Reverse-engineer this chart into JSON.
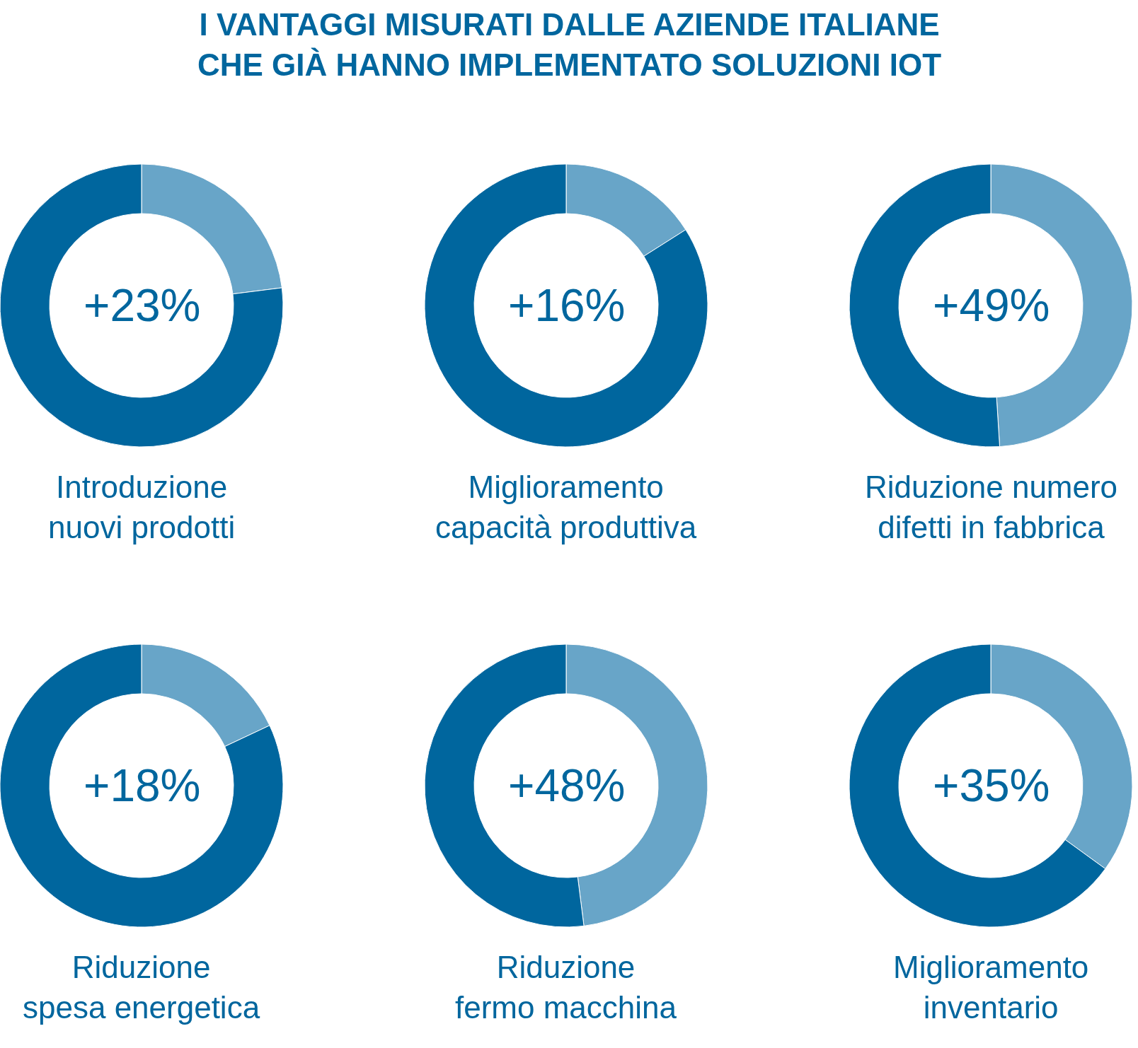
{
  "chart_data": [
    {
      "type": "other",
      "title": "I VANTAGGI MISURATI DALLE AZIENDE ITALIANE\nCHE GIÀ HANNO IMPLEMENTATO SOLUZIONI IOT"
    },
    {
      "type": "donut",
      "categories": [
        null,
        null
      ],
      "values": [
        23,
        77
      ],
      "colors": [
        "#68a5c8",
        "#00669e"
      ],
      "annotations": [
        "+23%"
      ],
      "xlabel": "Introduzione\nnuovi prodotti"
    },
    {
      "type": "donut",
      "categories": [
        null,
        null
      ],
      "values": [
        16,
        84
      ],
      "colors": [
        "#68a5c8",
        "#00669e"
      ],
      "annotations": [
        "+16%"
      ],
      "xlabel": "Miglioramento\ncapacità produttiva"
    },
    {
      "type": "donut",
      "categories": [
        null,
        null
      ],
      "values": [
        49,
        51
      ],
      "colors": [
        "#68a5c8",
        "#00669e"
      ],
      "annotations": [
        "+49%"
      ],
      "xlabel": "Riduzione numero\ndifetti in fabbrica"
    },
    {
      "type": "donut",
      "categories": [
        null,
        null
      ],
      "values": [
        18,
        82
      ],
      "colors": [
        "#68a5c8",
        "#00669e"
      ],
      "annotations": [
        "+18%"
      ],
      "xlabel": "Riduzione\nspesa energetica"
    },
    {
      "type": "donut",
      "categories": [
        null,
        null
      ],
      "values": [
        48,
        52
      ],
      "colors": [
        "#68a5c8",
        "#00669e"
      ],
      "annotations": [
        "+48%"
      ],
      "xlabel": "Riduzione\nfermo macchina"
    },
    {
      "type": "donut",
      "categories": [
        null,
        null
      ],
      "values": [
        35,
        65
      ],
      "colors": [
        "#68a5c8",
        "#00669e"
      ],
      "annotations": [
        "+35%"
      ],
      "xlabel": "Miglioramento\ninventario"
    }
  ]
}
